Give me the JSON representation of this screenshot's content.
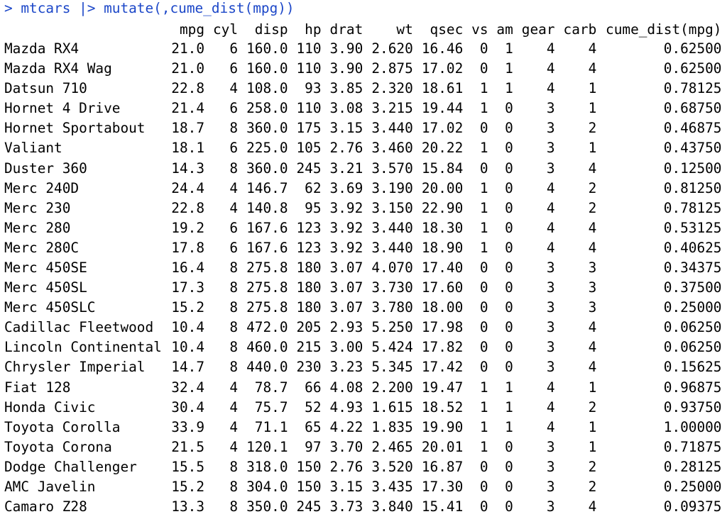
{
  "command": "> mtcars |> mutate(,cume_dist(mpg))",
  "table": {
    "columns": [
      "mpg",
      "cyl",
      "disp",
      "hp",
      "drat",
      "wt",
      "qsec",
      "vs",
      "am",
      "gear",
      "carb",
      "cume_dist(mpg)"
    ],
    "rows": [
      [
        "Mazda RX4",
        "21.0",
        "6",
        "160.0",
        "110",
        "3.90",
        "2.620",
        "16.46",
        "0",
        "1",
        "4",
        "4",
        "0.62500"
      ],
      [
        "Mazda RX4 Wag",
        "21.0",
        "6",
        "160.0",
        "110",
        "3.90",
        "2.875",
        "17.02",
        "0",
        "1",
        "4",
        "4",
        "0.62500"
      ],
      [
        "Datsun 710",
        "22.8",
        "4",
        "108.0",
        "93",
        "3.85",
        "2.320",
        "18.61",
        "1",
        "1",
        "4",
        "1",
        "0.78125"
      ],
      [
        "Hornet 4 Drive",
        "21.4",
        "6",
        "258.0",
        "110",
        "3.08",
        "3.215",
        "19.44",
        "1",
        "0",
        "3",
        "1",
        "0.68750"
      ],
      [
        "Hornet Sportabout",
        "18.7",
        "8",
        "360.0",
        "175",
        "3.15",
        "3.440",
        "17.02",
        "0",
        "0",
        "3",
        "2",
        "0.46875"
      ],
      [
        "Valiant",
        "18.1",
        "6",
        "225.0",
        "105",
        "2.76",
        "3.460",
        "20.22",
        "1",
        "0",
        "3",
        "1",
        "0.43750"
      ],
      [
        "Duster 360",
        "14.3",
        "8",
        "360.0",
        "245",
        "3.21",
        "3.570",
        "15.84",
        "0",
        "0",
        "3",
        "4",
        "0.12500"
      ],
      [
        "Merc 240D",
        "24.4",
        "4",
        "146.7",
        "62",
        "3.69",
        "3.190",
        "20.00",
        "1",
        "0",
        "4",
        "2",
        "0.81250"
      ],
      [
        "Merc 230",
        "22.8",
        "4",
        "140.8",
        "95",
        "3.92",
        "3.150",
        "22.90",
        "1",
        "0",
        "4",
        "2",
        "0.78125"
      ],
      [
        "Merc 280",
        "19.2",
        "6",
        "167.6",
        "123",
        "3.92",
        "3.440",
        "18.30",
        "1",
        "0",
        "4",
        "4",
        "0.53125"
      ],
      [
        "Merc 280C",
        "17.8",
        "6",
        "167.6",
        "123",
        "3.92",
        "3.440",
        "18.90",
        "1",
        "0",
        "4",
        "4",
        "0.40625"
      ],
      [
        "Merc 450SE",
        "16.4",
        "8",
        "275.8",
        "180",
        "3.07",
        "4.070",
        "17.40",
        "0",
        "0",
        "3",
        "3",
        "0.34375"
      ],
      [
        "Merc 450SL",
        "17.3",
        "8",
        "275.8",
        "180",
        "3.07",
        "3.730",
        "17.60",
        "0",
        "0",
        "3",
        "3",
        "0.37500"
      ],
      [
        "Merc 450SLC",
        "15.2",
        "8",
        "275.8",
        "180",
        "3.07",
        "3.780",
        "18.00",
        "0",
        "0",
        "3",
        "3",
        "0.25000"
      ],
      [
        "Cadillac Fleetwood",
        "10.4",
        "8",
        "472.0",
        "205",
        "2.93",
        "5.250",
        "17.98",
        "0",
        "0",
        "3",
        "4",
        "0.06250"
      ],
      [
        "Lincoln Continental",
        "10.4",
        "8",
        "460.0",
        "215",
        "3.00",
        "5.424",
        "17.82",
        "0",
        "0",
        "3",
        "4",
        "0.06250"
      ],
      [
        "Chrysler Imperial",
        "14.7",
        "8",
        "440.0",
        "230",
        "3.23",
        "5.345",
        "17.42",
        "0",
        "0",
        "3",
        "4",
        "0.15625"
      ],
      [
        "Fiat 128",
        "32.4",
        "4",
        "78.7",
        "66",
        "4.08",
        "2.200",
        "19.47",
        "1",
        "1",
        "4",
        "1",
        "0.96875"
      ],
      [
        "Honda Civic",
        "30.4",
        "4",
        "75.7",
        "52",
        "4.93",
        "1.615",
        "18.52",
        "1",
        "1",
        "4",
        "2",
        "0.93750"
      ],
      [
        "Toyota Corolla",
        "33.9",
        "4",
        "71.1",
        "65",
        "4.22",
        "1.835",
        "19.90",
        "1",
        "1",
        "4",
        "1",
        "1.00000"
      ],
      [
        "Toyota Corona",
        "21.5",
        "4",
        "120.1",
        "97",
        "3.70",
        "2.465",
        "20.01",
        "1",
        "0",
        "3",
        "1",
        "0.71875"
      ],
      [
        "Dodge Challenger",
        "15.5",
        "8",
        "318.0",
        "150",
        "2.76",
        "3.520",
        "16.87",
        "0",
        "0",
        "3",
        "2",
        "0.28125"
      ],
      [
        "AMC Javelin",
        "15.2",
        "8",
        "304.0",
        "150",
        "3.15",
        "3.435",
        "17.30",
        "0",
        "0",
        "3",
        "2",
        "0.25000"
      ],
      [
        "Camaro Z28",
        "13.3",
        "8",
        "350.0",
        "245",
        "3.73",
        "3.840",
        "15.41",
        "0",
        "0",
        "3",
        "4",
        "0.09375"
      ]
    ]
  }
}
